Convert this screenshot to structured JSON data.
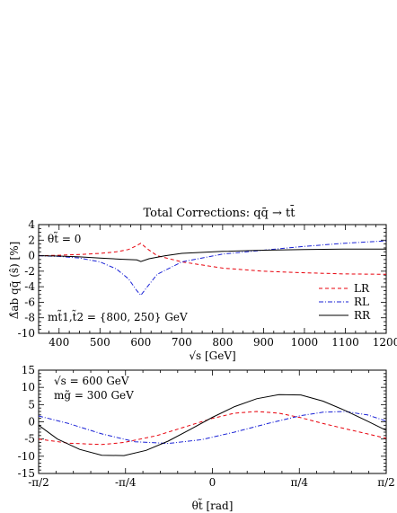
{
  "figure_title": "Total Corrections:  qq̄  →  tt̄",
  "chart_data": [
    {
      "type": "line",
      "panel": "top",
      "xlabel": "√s  [GeV]",
      "ylabel": "Δ̂ab qq̄ (ŝ)  [%]",
      "xlim": [
        350,
        1200
      ],
      "ylim": [
        -10,
        4
      ],
      "xticks": [
        400,
        500,
        600,
        700,
        800,
        900,
        1000,
        1100,
        1200
      ],
      "yticks": [
        4,
        2,
        0,
        -2,
        -4,
        -6,
        -8,
        -10
      ],
      "annotations": [
        "θt̃ = 0",
        "mt̃1,t̃2 = {800, 250} GeV"
      ],
      "legend": {
        "position": "bottom-right",
        "entries": [
          "LR",
          "RL",
          "RR"
        ]
      },
      "series": [
        {
          "name": "LR",
          "color": "#e8000b",
          "dash": "dashed",
          "x": [
            350,
            400,
            450,
            500,
            540,
            570,
            590,
            600,
            615,
            640,
            700,
            800,
            900,
            1000,
            1100,
            1200
          ],
          "y": [
            0,
            0.05,
            0.15,
            0.3,
            0.5,
            0.8,
            1.3,
            1.6,
            0.9,
            0,
            -0.8,
            -1.6,
            -2.0,
            -2.2,
            -2.35,
            -2.4
          ]
        },
        {
          "name": "RL",
          "color": "#1a22d6",
          "dash": "dashdot",
          "x": [
            350,
            400,
            450,
            500,
            540,
            570,
            590,
            600,
            610,
            640,
            700,
            800,
            900,
            1000,
            1100,
            1200
          ],
          "y": [
            0,
            -0.1,
            -0.3,
            -0.8,
            -1.7,
            -3.0,
            -4.5,
            -5.1,
            -4.4,
            -2.4,
            -0.8,
            0.2,
            0.7,
            1.2,
            1.6,
            1.9
          ]
        },
        {
          "name": "RR",
          "color": "#000000",
          "dash": "solid",
          "x": [
            350,
            400,
            450,
            500,
            550,
            590,
            600,
            620,
            660,
            700,
            800,
            900,
            1000,
            1100,
            1200
          ],
          "y": [
            0,
            -0.05,
            -0.15,
            -0.3,
            -0.45,
            -0.55,
            -0.75,
            -0.4,
            0,
            0.3,
            0.55,
            0.7,
            0.8,
            0.85,
            0.85
          ]
        }
      ]
    },
    {
      "type": "line",
      "panel": "bottom",
      "xlabel": "θt̃ [rad]",
      "ylabel": "",
      "xlim": [
        -1.5708,
        1.5708
      ],
      "ylim": [
        -15,
        15
      ],
      "xticks": [
        -1.5708,
        -0.7854,
        0,
        0.7854,
        1.5708
      ],
      "xticklabels": [
        "-π/2",
        "-π/4",
        "0",
        "π/4",
        "π/2"
      ],
      "yticks": [
        15,
        10,
        5,
        0,
        -5,
        -10,
        -15
      ],
      "annotations": [
        "√s = 600 GeV",
        "mg̃ = 300 GeV"
      ],
      "series": [
        {
          "name": "LR",
          "color": "#e8000b",
          "dash": "dashed",
          "x": [
            -1.5708,
            -1.3,
            -1.0,
            -0.8,
            -0.5,
            -0.2,
            0,
            0.2,
            0.4,
            0.6,
            0.8,
            1.0,
            1.2,
            1.4,
            1.5708
          ],
          "y": [
            -5,
            -6.2,
            -6.6,
            -6.0,
            -4.0,
            -1.0,
            1.0,
            2.5,
            3.0,
            2.5,
            1.2,
            -0.5,
            -2.0,
            -3.5,
            -4.8
          ]
        },
        {
          "name": "RL",
          "color": "#1a22d6",
          "dash": "dashdot",
          "x": [
            -1.5708,
            -1.3,
            -1.0,
            -0.7,
            -0.4,
            -0.1,
            0.2,
            0.5,
            0.8,
            1.0,
            1.2,
            1.4,
            1.5708
          ],
          "y": [
            1.7,
            -0.5,
            -3.5,
            -5.8,
            -6.3,
            -5.2,
            -3.0,
            -0.5,
            1.8,
            2.8,
            3.0,
            2.0,
            0.2
          ]
        },
        {
          "name": "RR",
          "color": "#000000",
          "dash": "solid",
          "x": [
            -1.5708,
            -1.4,
            -1.2,
            -1.0,
            -0.8,
            -0.6,
            -0.4,
            -0.2,
            0,
            0.2,
            0.4,
            0.6,
            0.8,
            1.0,
            1.2,
            1.4,
            1.5708
          ],
          "y": [
            -1.0,
            -5.0,
            -8.0,
            -9.7,
            -9.8,
            -8.3,
            -5.6,
            -2.2,
            1.3,
            4.4,
            6.7,
            7.9,
            7.8,
            6.0,
            3.3,
            0.2,
            -2.5
          ]
        }
      ]
    }
  ]
}
